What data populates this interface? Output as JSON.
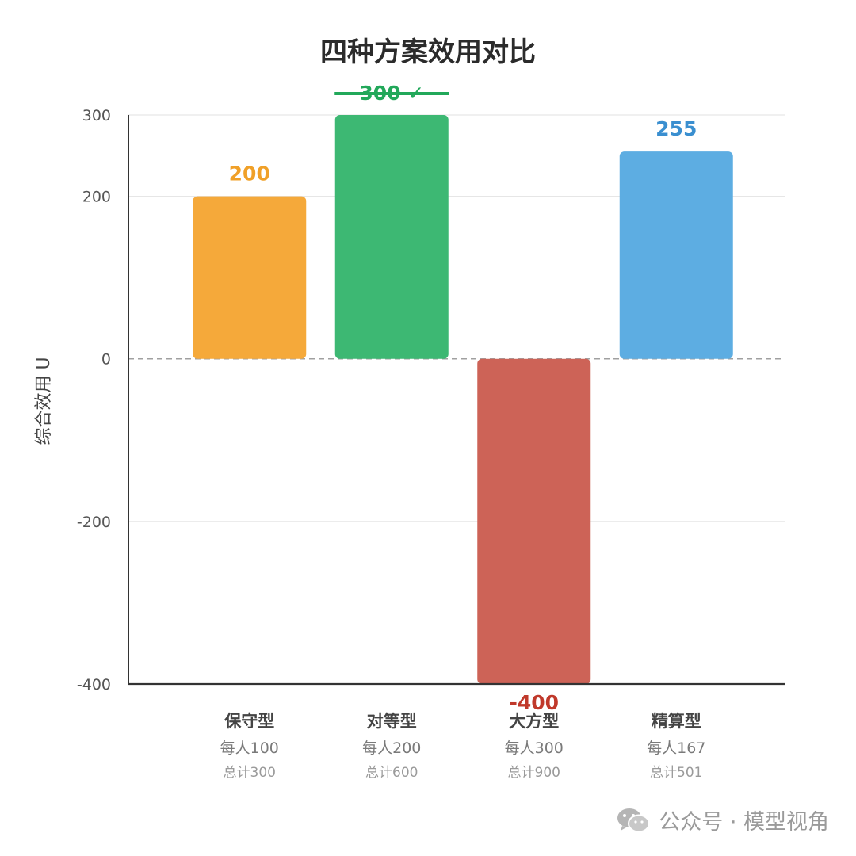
{
  "chart_data": {
    "type": "bar",
    "title": "四种方案效用对比",
    "ylabel": "综合效用 U",
    "xlabel": "",
    "ylim": [
      -400,
      300
    ],
    "yticks": [
      300,
      200,
      0,
      -200,
      -400
    ],
    "grid": true,
    "categories": [
      {
        "name": "保守型",
        "sub1": "每人100",
        "sub2": "总计300",
        "value": 200,
        "value_label": "200",
        "color": "#f5a93a",
        "label_color": "#f0a028"
      },
      {
        "name": "对等型",
        "sub1": "每人200",
        "sub2": "总计600",
        "value": 300,
        "value_label": "300 ✓",
        "color": "#3db873",
        "label_color": "#22a85a",
        "best": true
      },
      {
        "name": "大方型",
        "sub1": "每人300",
        "sub2": "总计900",
        "value": -400,
        "value_label": "-400",
        "color": "#cd6357",
        "label_color": "#c0392b"
      },
      {
        "name": "精算型",
        "sub1": "每人167",
        "sub2": "总计501",
        "value": 255,
        "value_label": "255",
        "color": "#5dade2",
        "label_color": "#3a8fd0"
      }
    ]
  },
  "watermark": {
    "text": "公众号 · 模型视角",
    "icon": "wechat-icon"
  }
}
